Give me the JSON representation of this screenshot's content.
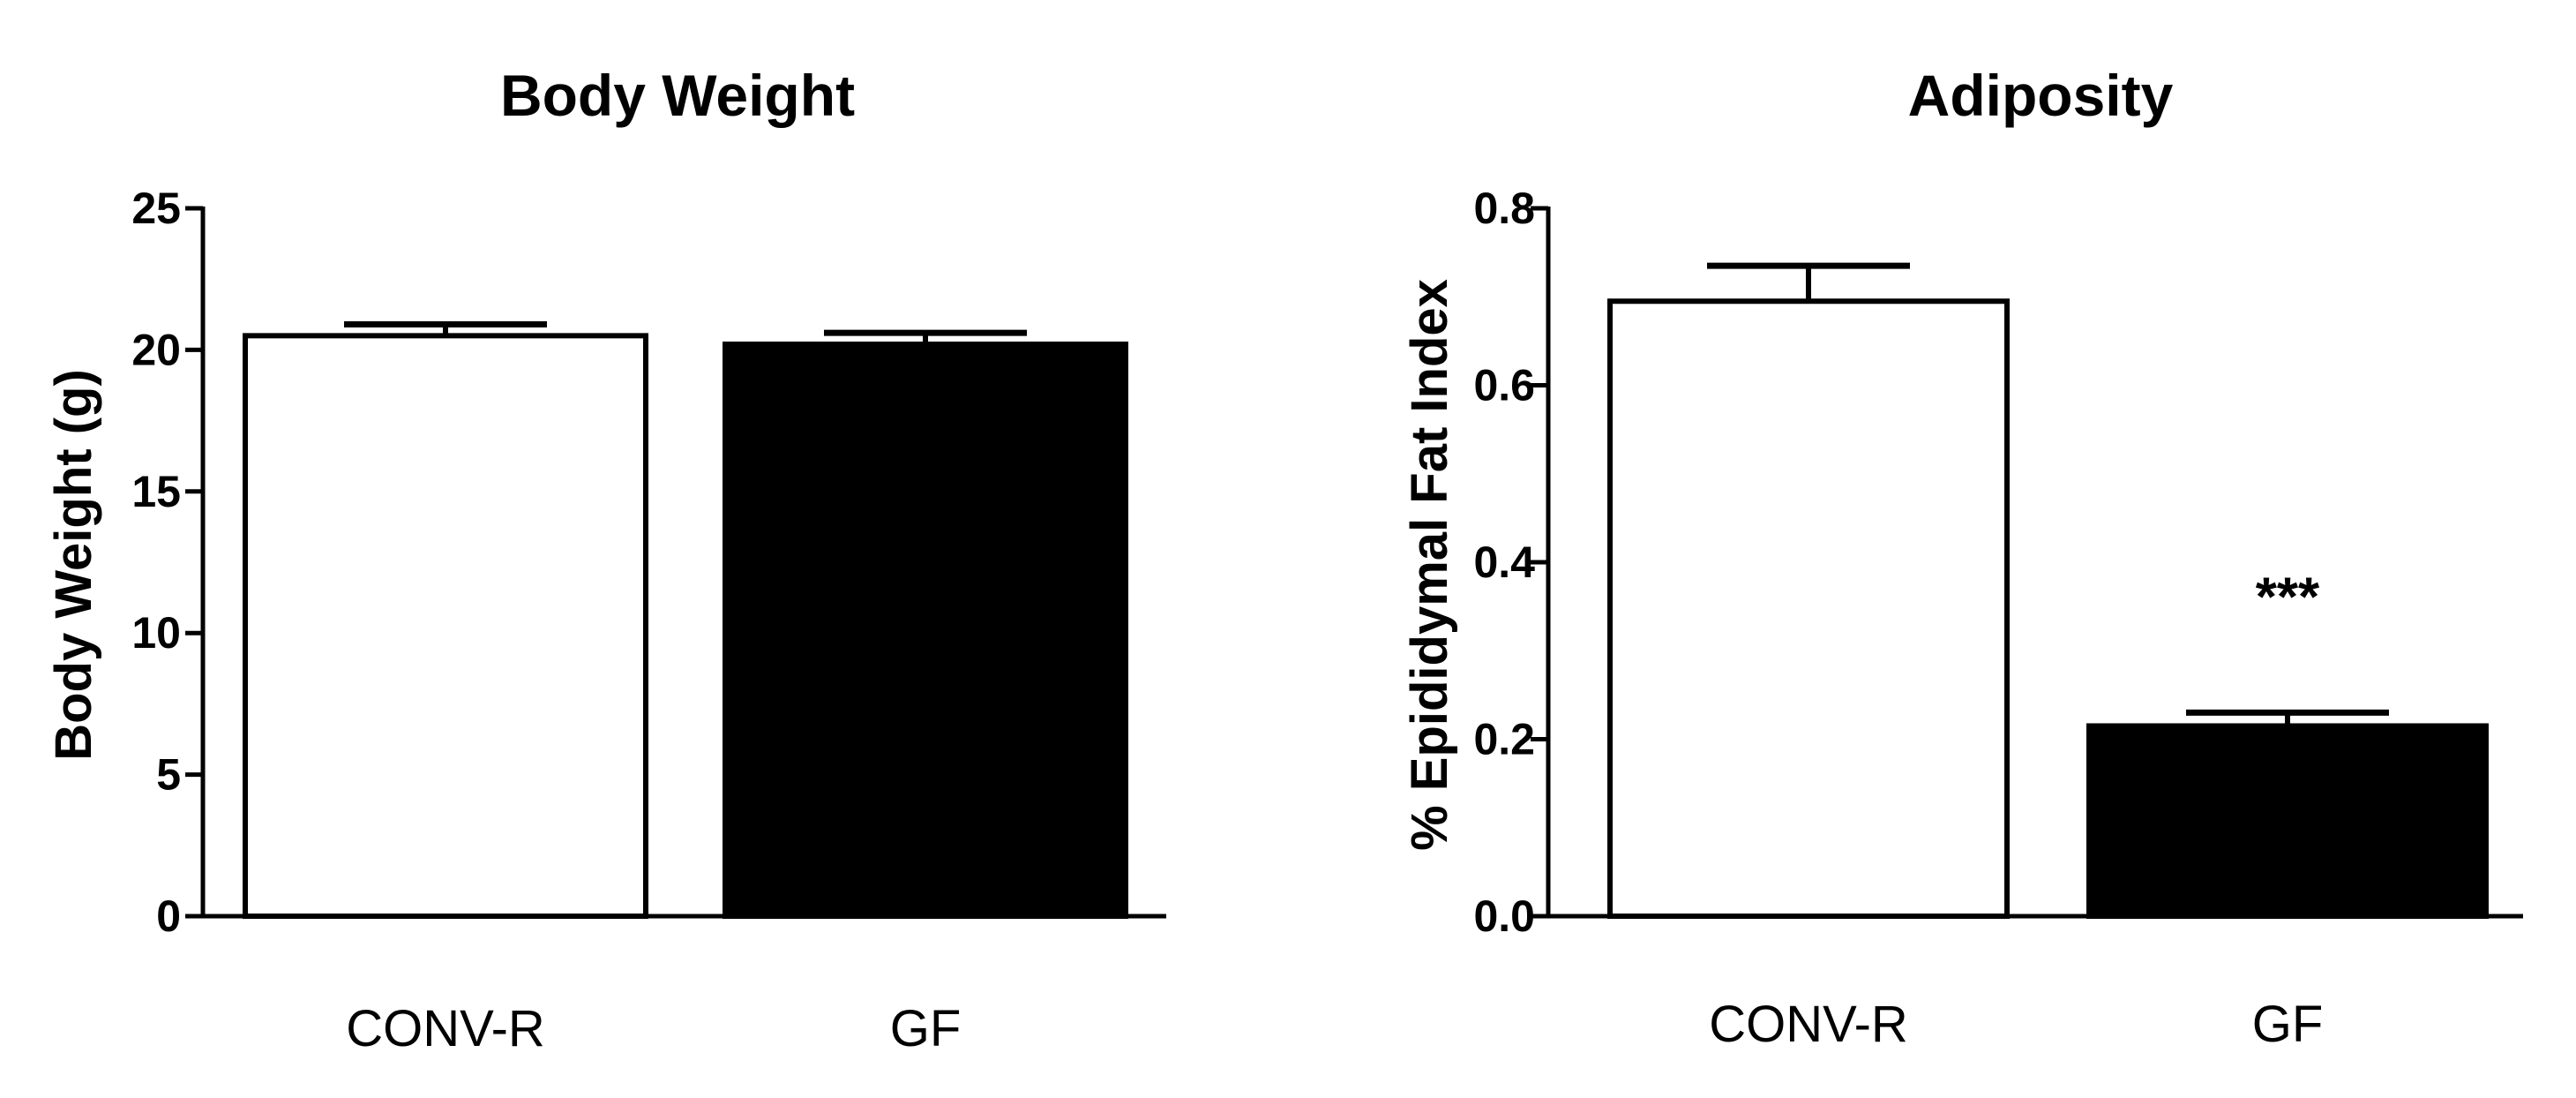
{
  "chart_data": [
    {
      "type": "bar",
      "title": "Body Weight",
      "xlabel": "",
      "ylabel": "Body Weight (g)",
      "ylim": [
        0,
        25
      ],
      "yticks": [
        0,
        5,
        10,
        15,
        20,
        25
      ],
      "categories": [
        "CONV-R",
        "GF"
      ],
      "values": [
        20.5,
        20.2
      ],
      "errors": [
        0.4,
        0.4
      ],
      "bar_fills": [
        "#ffffff",
        "#000000"
      ],
      "annotations": [
        "",
        ""
      ],
      "grid": false
    },
    {
      "type": "bar",
      "title": "Adiposity",
      "xlabel": "",
      "ylabel": "% Epididymal Fat Index",
      "ylim": [
        0,
        0.8
      ],
      "yticks": [
        "0.0",
        "0.2",
        "0.4",
        "0.6",
        "0.8"
      ],
      "categories": [
        "CONV-R",
        "GF"
      ],
      "values": [
        0.695,
        0.215
      ],
      "errors": [
        0.04,
        0.015
      ],
      "bar_fills": [
        "#ffffff",
        "#000000"
      ],
      "annotations": [
        "",
        "***"
      ],
      "grid": false
    }
  ]
}
